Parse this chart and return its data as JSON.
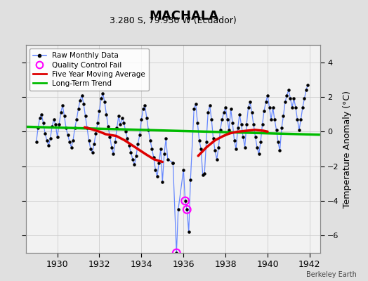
{
  "title": "MACHALA",
  "subtitle": "3.280 S, 79.930 W (Ecuador)",
  "ylabel": "Temperature Anomaly (°C)",
  "credit": "Berkeley Earth",
  "xlim": [
    1928.5,
    1942.5
  ],
  "ylim": [
    -7.0,
    5.0
  ],
  "yticks": [
    -6,
    -4,
    -2,
    0,
    2,
    4
  ],
  "xticks": [
    1930,
    1932,
    1934,
    1936,
    1938,
    1940,
    1942
  ],
  "bg_color": "#e0e0e0",
  "plot_bg_color": "#f2f2f2",
  "raw_color": "#6688ff",
  "dot_color": "#000000",
  "ma_color": "#dd0000",
  "trend_color": "#00bb00",
  "qc_color": "#ff00ff",
  "raw_data": [
    [
      1929.0,
      -0.6
    ],
    [
      1929.083,
      0.2
    ],
    [
      1929.167,
      0.8
    ],
    [
      1929.25,
      1.0
    ],
    [
      1929.333,
      0.5
    ],
    [
      1929.417,
      -0.1
    ],
    [
      1929.5,
      -0.5
    ],
    [
      1929.583,
      -0.8
    ],
    [
      1929.667,
      -0.4
    ],
    [
      1929.75,
      0.3
    ],
    [
      1929.833,
      0.7
    ],
    [
      1929.917,
      0.4
    ],
    [
      1930.0,
      -0.3
    ],
    [
      1930.083,
      0.4
    ],
    [
      1930.167,
      1.1
    ],
    [
      1930.25,
      1.5
    ],
    [
      1930.333,
      0.9
    ],
    [
      1930.417,
      0.2
    ],
    [
      1930.5,
      -0.2
    ],
    [
      1930.583,
      -0.6
    ],
    [
      1930.667,
      -0.9
    ],
    [
      1930.75,
      -0.5
    ],
    [
      1930.833,
      0.2
    ],
    [
      1930.917,
      0.7
    ],
    [
      1931.0,
      1.3
    ],
    [
      1931.083,
      1.8
    ],
    [
      1931.167,
      2.1
    ],
    [
      1931.25,
      1.6
    ],
    [
      1931.333,
      0.9
    ],
    [
      1931.417,
      0.2
    ],
    [
      1931.5,
      -0.5
    ],
    [
      1931.583,
      -1.0
    ],
    [
      1931.667,
      -1.2
    ],
    [
      1931.75,
      -0.7
    ],
    [
      1931.833,
      -0.1
    ],
    [
      1931.917,
      0.5
    ],
    [
      1932.0,
      1.2
    ],
    [
      1932.083,
      1.9
    ],
    [
      1932.167,
      2.2
    ],
    [
      1932.25,
      1.7
    ],
    [
      1932.333,
      1.0
    ],
    [
      1932.417,
      0.3
    ],
    [
      1932.5,
      -0.3
    ],
    [
      1932.583,
      -0.9
    ],
    [
      1932.667,
      -1.3
    ],
    [
      1932.75,
      -0.6
    ],
    [
      1932.833,
      0.2
    ],
    [
      1932.917,
      0.9
    ],
    [
      1933.0,
      0.4
    ],
    [
      1933.083,
      0.8
    ],
    [
      1933.167,
      0.5
    ],
    [
      1933.25,
      0.0
    ],
    [
      1933.333,
      -0.4
    ],
    [
      1933.417,
      -0.8
    ],
    [
      1933.5,
      -1.2
    ],
    [
      1933.583,
      -1.6
    ],
    [
      1933.667,
      -1.9
    ],
    [
      1933.75,
      -1.4
    ],
    [
      1933.833,
      -0.7
    ],
    [
      1933.917,
      -0.2
    ],
    [
      1934.0,
      0.7
    ],
    [
      1934.083,
      1.3
    ],
    [
      1934.167,
      1.5
    ],
    [
      1934.25,
      0.8
    ],
    [
      1934.333,
      0.1
    ],
    [
      1934.417,
      -0.5
    ],
    [
      1934.5,
      -1.0
    ],
    [
      1934.583,
      -1.5
    ],
    [
      1934.667,
      -2.2
    ],
    [
      1934.75,
      -2.6
    ],
    [
      1934.833,
      -1.8
    ],
    [
      1934.917,
      -1.0
    ],
    [
      1935.0,
      -2.9
    ],
    [
      1935.083,
      -1.3
    ],
    [
      1935.167,
      -0.4
    ],
    [
      1935.25,
      -1.6
    ],
    [
      1935.5,
      -1.8
    ],
    [
      1935.667,
      -7.0
    ],
    [
      1935.75,
      -4.5
    ],
    [
      1936.0,
      -2.2
    ],
    [
      1936.083,
      -4.0
    ],
    [
      1936.167,
      -4.5
    ],
    [
      1936.25,
      -5.8
    ],
    [
      1936.333,
      -2.8
    ],
    [
      1936.5,
      1.3
    ],
    [
      1936.583,
      1.6
    ],
    [
      1936.667,
      0.5
    ],
    [
      1936.75,
      -0.5
    ],
    [
      1936.833,
      -1.0
    ],
    [
      1936.917,
      -2.5
    ],
    [
      1937.0,
      -2.4
    ],
    [
      1937.083,
      -0.6
    ],
    [
      1937.167,
      1.1
    ],
    [
      1937.25,
      1.5
    ],
    [
      1937.333,
      0.7
    ],
    [
      1937.417,
      -0.4
    ],
    [
      1937.5,
      -1.1
    ],
    [
      1937.583,
      -1.6
    ],
    [
      1937.667,
      -0.9
    ],
    [
      1937.75,
      0.1
    ],
    [
      1937.833,
      0.7
    ],
    [
      1937.917,
      1.1
    ],
    [
      1938.0,
      1.4
    ],
    [
      1938.083,
      0.7
    ],
    [
      1938.167,
      0.1
    ],
    [
      1938.25,
      1.3
    ],
    [
      1938.333,
      0.5
    ],
    [
      1938.417,
      -0.5
    ],
    [
      1938.5,
      -1.0
    ],
    [
      1938.583,
      0.2
    ],
    [
      1938.667,
      1.0
    ],
    [
      1938.75,
      0.4
    ],
    [
      1938.833,
      -0.3
    ],
    [
      1938.917,
      -0.9
    ],
    [
      1939.0,
      0.4
    ],
    [
      1939.083,
      1.4
    ],
    [
      1939.167,
      1.7
    ],
    [
      1939.25,
      1.1
    ],
    [
      1939.333,
      0.4
    ],
    [
      1939.417,
      -0.3
    ],
    [
      1939.5,
      -0.9
    ],
    [
      1939.583,
      -1.3
    ],
    [
      1939.667,
      -0.6
    ],
    [
      1939.75,
      0.4
    ],
    [
      1939.833,
      1.2
    ],
    [
      1939.917,
      1.7
    ],
    [
      1940.0,
      2.1
    ],
    [
      1940.083,
      1.4
    ],
    [
      1940.167,
      0.7
    ],
    [
      1940.25,
      1.4
    ],
    [
      1940.333,
      0.7
    ],
    [
      1940.417,
      0.1
    ],
    [
      1940.5,
      -0.6
    ],
    [
      1940.583,
      -1.1
    ],
    [
      1940.667,
      0.2
    ],
    [
      1940.75,
      0.9
    ],
    [
      1940.833,
      1.7
    ],
    [
      1940.917,
      2.1
    ],
    [
      1941.0,
      2.4
    ],
    [
      1941.083,
      1.9
    ],
    [
      1941.167,
      1.4
    ],
    [
      1941.25,
      1.9
    ],
    [
      1941.333,
      1.4
    ],
    [
      1941.417,
      0.7
    ],
    [
      1941.5,
      0.1
    ],
    [
      1941.583,
      0.7
    ],
    [
      1941.667,
      1.4
    ],
    [
      1941.75,
      1.9
    ],
    [
      1941.833,
      2.4
    ],
    [
      1941.917,
      2.7
    ]
  ],
  "ma_segment1": [
    [
      1931.3,
      0.25
    ],
    [
      1931.6,
      0.15
    ],
    [
      1932.0,
      0.0
    ],
    [
      1932.3,
      -0.15
    ],
    [
      1932.8,
      -0.25
    ]
  ],
  "ma_segment2": [
    [
      1932.8,
      -0.25
    ],
    [
      1933.2,
      -0.5
    ],
    [
      1933.7,
      -0.9
    ],
    [
      1934.2,
      -1.3
    ],
    [
      1934.6,
      -1.6
    ],
    [
      1935.0,
      -1.75
    ]
  ],
  "ma_segment3": [
    [
      1936.7,
      -1.4
    ],
    [
      1937.1,
      -0.9
    ],
    [
      1937.5,
      -0.5
    ],
    [
      1937.9,
      -0.25
    ],
    [
      1938.2,
      -0.1
    ]
  ],
  "ma_segment4": [
    [
      1938.2,
      -0.1
    ],
    [
      1938.6,
      0.0
    ],
    [
      1939.0,
      0.05
    ],
    [
      1939.4,
      0.1
    ],
    [
      1939.8,
      0.05
    ],
    [
      1940.0,
      0.0
    ]
  ],
  "trend_x": [
    1928.5,
    1942.5
  ],
  "trend_y": [
    0.28,
    -0.18
  ],
  "qc_fail_points": [
    [
      1935.667,
      -7.0
    ],
    [
      1936.083,
      -4.0
    ],
    [
      1936.167,
      -4.5
    ]
  ],
  "isolated_dot": [
    1935.5,
    -1.8
  ]
}
